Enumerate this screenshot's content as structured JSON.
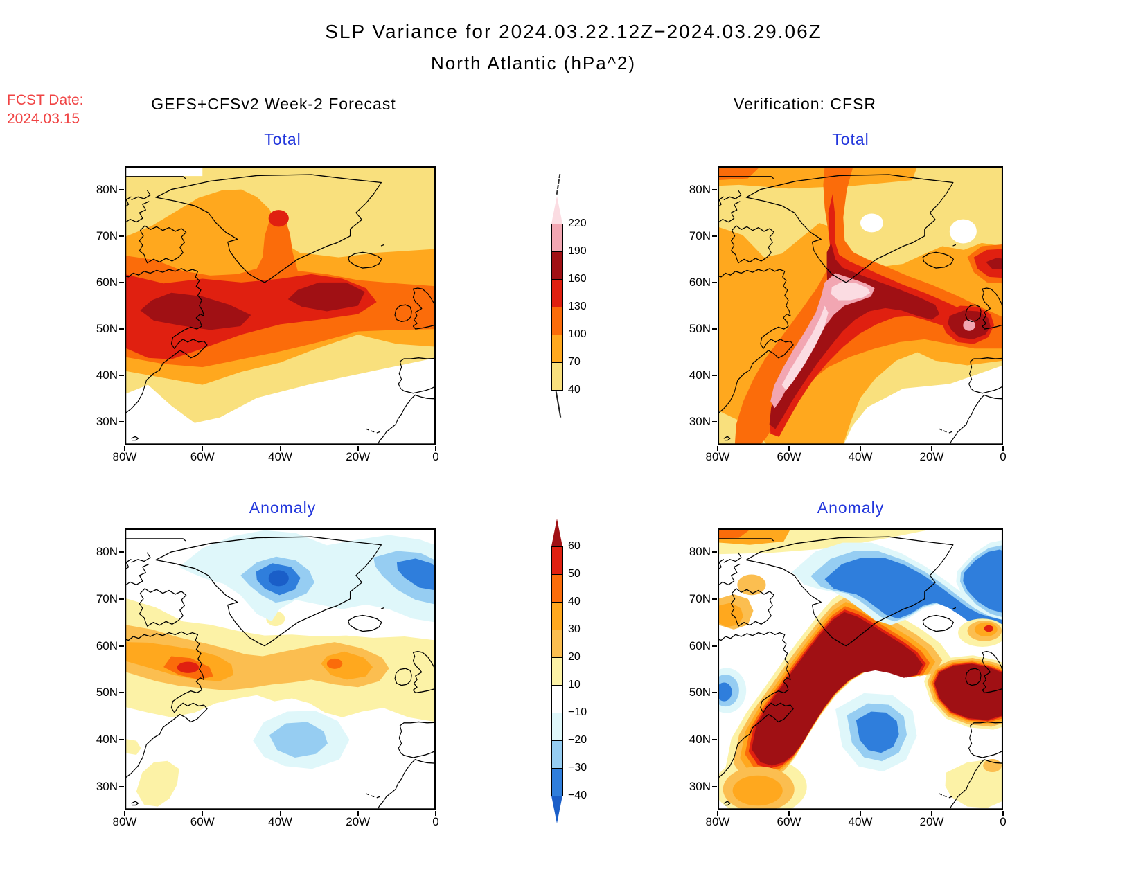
{
  "title": {
    "line1": "SLP Variance for 2024.03.22.12Z−2024.03.29.06Z",
    "line2": "North Atlantic (hPa^2)"
  },
  "forecast_info": {
    "fcst_date_label": "FCST Date:",
    "fcst_date_value": "2024.03.15"
  },
  "columns": {
    "left_subtitle": "GEFS+CFSv2 Week-2 Forecast",
    "right_subtitle": "Verification: CFSR"
  },
  "panels": [
    {
      "id": "forecast-total",
      "title": "Total"
    },
    {
      "id": "verification-total",
      "title": "Total"
    },
    {
      "id": "forecast-anomaly",
      "title": "Anomaly"
    },
    {
      "id": "verification-anomaly",
      "title": "Anomaly"
    }
  ],
  "axes": {
    "lat_ticks": [
      {
        "label": "80N",
        "value": 80
      },
      {
        "label": "70N",
        "value": 70
      },
      {
        "label": "60N",
        "value": 60
      },
      {
        "label": "50N",
        "value": 50
      },
      {
        "label": "40N",
        "value": 40
      },
      {
        "label": "30N",
        "value": 30
      }
    ],
    "lon_ticks": [
      {
        "label": "80W",
        "value": 80
      },
      {
        "label": "60W",
        "value": 60
      },
      {
        "label": "40W",
        "value": 40
      },
      {
        "label": "20W",
        "value": 20
      },
      {
        "label": "0",
        "value": 0
      }
    ]
  },
  "colorbars": {
    "total": {
      "boundary_labels": [
        "220",
        "190",
        "160",
        "130",
        "100",
        "70",
        "40"
      ],
      "segment_colors_top_to_bottom": [
        "#F2A6B2",
        "#A01014",
        "#E02010",
        "#FB6C0A",
        "#FFA81E",
        "#F9E07D"
      ],
      "above_top_color": "#FBDCE2"
    },
    "anomaly": {
      "boundary_labels": [
        "60",
        "50",
        "40",
        "30",
        "20",
        "10",
        "−10",
        "−20",
        "−30",
        "−40"
      ],
      "segment_colors_top_to_bottom": [
        "#E02010",
        "#FB6C0A",
        "#FFA81E",
        "#FBBE50",
        "#FCF2A6",
        "#FFFFFF",
        "#DFF7FA",
        "#96CDF2",
        "#2F7EDC"
      ],
      "above_top_color": "#A01014",
      "below_bottom_color": "#1A5EC8"
    }
  },
  "style_colors": {
    "panel_title_blue": "#2236DC",
    "fcst_date_red": "#F04343",
    "coastline_black": "#000000"
  },
  "chart_data": {
    "type": "heatmap",
    "subtype": "filled-contour-map-grid",
    "units": "hPa^2",
    "region": "North Atlantic",
    "valid_period": "2024.03.22.12Z to 2024.03.29.06Z",
    "forecast_issued": "2024.03.15",
    "projection": "latlon",
    "lon_range_deg_west": [
      80,
      0
    ],
    "lat_range_deg_north": [
      25,
      85
    ],
    "grid": "2 columns (GEFS+CFSv2 Week-2 Forecast | Verification: CFSR) x 2 rows (Total | Anomaly)",
    "total_contour_levels": [
      40,
      70,
      100,
      130,
      160,
      190,
      220
    ],
    "anomaly_contour_levels": [
      -40,
      -30,
      -20,
      -10,
      10,
      20,
      30,
      40,
      50,
      60
    ],
    "panels": [
      {
        "name": "forecast_total",
        "title": "Total",
        "column": "GEFS+CFSv2 Week-2 Forecast",
        "summary": "Broad variance maximum 130-190 hPa^2 along 45-65N from Labrador/Newfoundland eastward to ~15W; two dark-red (160-190) cores near 55N 65W and 60N 30W; secondary 130-160 spot over central Greenland near 74N 40W; values fall below 40 south of ~40N in the east."
      },
      {
        "name": "verification_total",
        "title": "Total",
        "column": "Verification: CFSR",
        "summary": "Very intense SW-NE band with >190 (pink) and >220 (pale pink) cores from Nova Scotia/Newfoundland to just south of Greenland near 60N 45W; dark-red arm extends east to a secondary 160-190 maximum west of Ireland with a small >190 pocket near 51N 13W; another red maximum at the right edge near 64N 3W; orange band along the top edge."
      },
      {
        "name": "forecast_anomaly",
        "title": "Anomaly",
        "column": "GEFS+CFSv2 Week-2 Forecast",
        "summary": "Negative anomalies (below -30, locally below -40) centered near 74N 41W north of Greenland and near 75N 5W; positive band +20 to +50 along 55-60N from Labrador (red core ~+50 near 58N 64W) east to ~20W with small +40 spot near 60N 27W; weak negative pocket (-10 to -30) near 41N 34W; weak positive patches in the far southwest."
      },
      {
        "name": "verification_anomaly",
        "title": "Anomaly",
        "column": "Verification: CFSR",
        "summary": "Strong positive band exceeding +60 from Nova Scotia (45N 65W) across southern Greenland (58-63N) and a second >+60 core west of Ireland reaching the right edge at 45-55N; strong negative (below -40) over the Greenland Sea 65-80N extending to the upper-right; secondary negative core near 44N 35W; small negative at left edge near 49N; orange patches near 30N 67W, near Iceland at 63N 5W, upper-left corner, and west Greenland side."
      }
    ],
    "legend_position": "two vertical colorbars centered between the panel columns",
    "grid_lines": false
  }
}
